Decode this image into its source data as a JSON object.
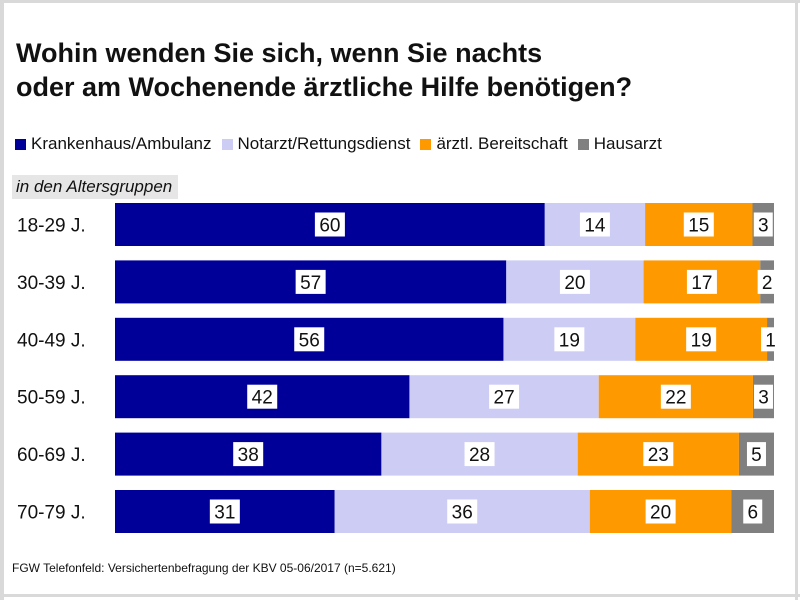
{
  "title": {
    "line1": "Wohin wenden Sie sich, wenn Sie nachts",
    "line2": "oder am Wochenende ärztliche Hilfe benötigen?"
  },
  "subtitle": "in den Altersgruppen",
  "source": "FGW Telefonfeld: Versichertenbefragung der KBV 05-06/2017 (n=5.621)",
  "chart_data": {
    "type": "bar",
    "orientation": "horizontal",
    "stacked": true,
    "grid": false,
    "legend_position": "top",
    "categories": [
      "18-29 J.",
      "30-39 J.",
      "40-49 J.",
      "50-59 J.",
      "60-69 J.",
      "70-79 J."
    ],
    "series": [
      {
        "name": "Krankenhaus/Ambulanz",
        "color": "#000099",
        "values": [
          60,
          57,
          56,
          42,
          38,
          31
        ]
      },
      {
        "name": "Notarzt/Rettungsdienst",
        "color": "#ccccf5",
        "values": [
          14,
          20,
          19,
          27,
          28,
          36
        ]
      },
      {
        "name": "ärztl. Bereitschaft",
        "color": "#ff9900",
        "values": [
          15,
          17,
          19,
          22,
          23,
          20
        ]
      },
      {
        "name": "Hausarzt",
        "color": "#808080",
        "values": [
          3,
          2,
          1,
          3,
          5,
          6
        ]
      }
    ]
  }
}
